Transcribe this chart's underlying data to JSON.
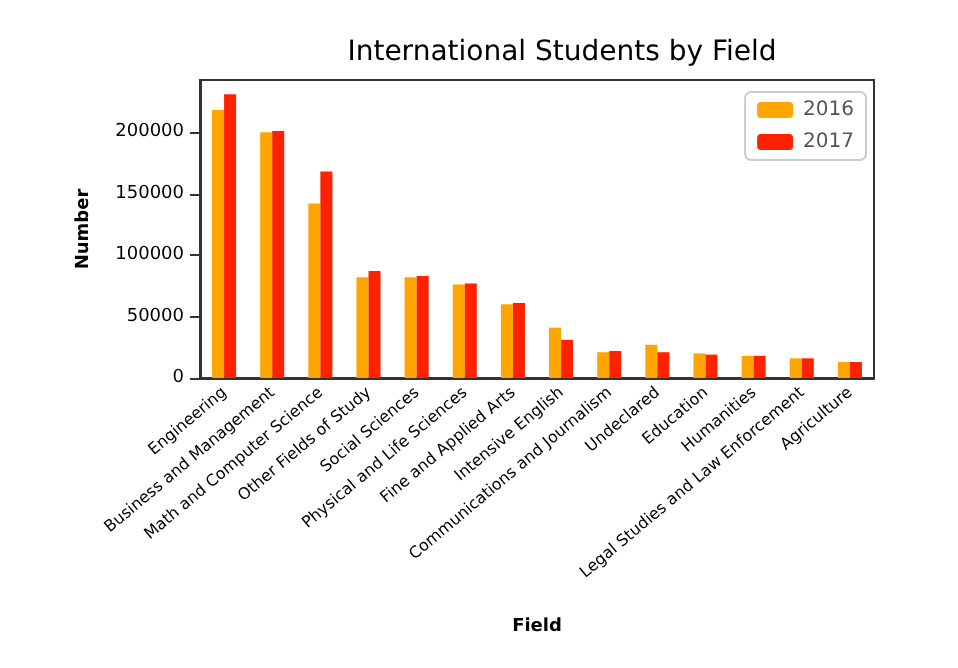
{
  "chart_data": {
    "type": "bar",
    "title": "International Students by Field",
    "xlabel": "Field",
    "ylabel": "Number",
    "categories": [
      "Engineering",
      "Business and Management",
      "Math and Computer Science",
      "Other Fields of Study",
      "Social Sciences",
      "Physical and Life Sciences",
      "Fine and Applied Arts",
      "Intensive English",
      "Communications and Journalism",
      "Undeclared",
      "Education",
      "Humanities",
      "Legal Studies and Law Enforcement",
      "Agriculture"
    ],
    "series": [
      {
        "name": "2016",
        "color": "#ffa500",
        "values": [
          218000,
          200000,
          142000,
          82000,
          82000,
          76000,
          60000,
          41000,
          21000,
          27000,
          20000,
          18000,
          16000,
          13000
        ]
      },
      {
        "name": "2017",
        "color": "#ff2200",
        "values": [
          231000,
          201000,
          168000,
          87000,
          83000,
          77000,
          61000,
          31000,
          22000,
          21000,
          19000,
          18000,
          16000,
          13000
        ]
      }
    ],
    "ylim": [
      0,
      242500
    ],
    "yticks": [
      0,
      50000,
      100000,
      150000,
      200000
    ],
    "grid": false,
    "legend": "top right"
  }
}
